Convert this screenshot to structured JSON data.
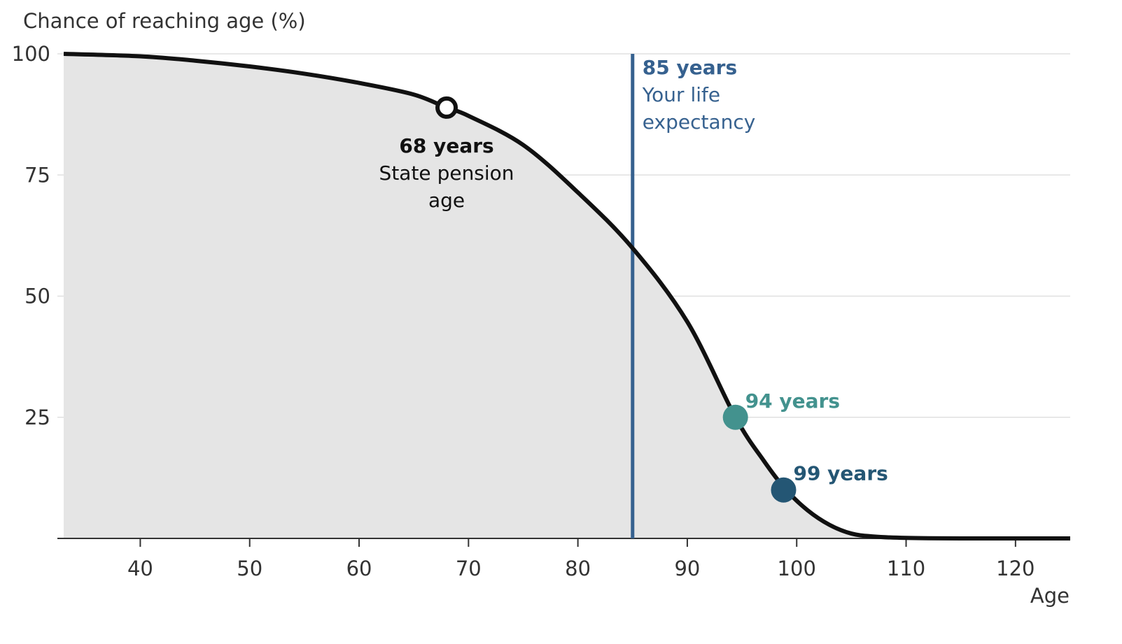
{
  "chart_data": {
    "type": "area",
    "ylabel": "Chance of reaching age (%)",
    "xlabel": "Age",
    "xlim": [
      33,
      125
    ],
    "ylim": [
      0,
      100
    ],
    "grid": true,
    "x_ticks": [
      40,
      50,
      60,
      70,
      80,
      90,
      100,
      110,
      120
    ],
    "y_ticks": [
      25,
      50,
      75,
      100
    ],
    "series": [
      {
        "name": "Chance of reaching age",
        "x": [
          33,
          40,
          45,
          50,
          55,
          60,
          65,
          68,
          70,
          75,
          80,
          85,
          90,
          94.4,
          97,
          99,
          101,
          103,
          105,
          107,
          110,
          115,
          125
        ],
        "values": [
          100,
          99.5,
          98.6,
          97.4,
          95.9,
          94,
          91.6,
          88.9,
          87.2,
          81.2,
          71.4,
          59.9,
          44.7,
          25,
          16,
          10.1,
          5.8,
          2.8,
          1.0,
          0.4,
          0.1,
          0,
          0
        ]
      }
    ],
    "annotations": {
      "pension": {
        "x": 68,
        "y": 88.9,
        "title": "68 years",
        "line1": "State pension",
        "line2": "age"
      },
      "life_expectancy": {
        "x": 85,
        "title": "85 years",
        "line1": "Your life",
        "line2": "expectancy"
      },
      "p25": {
        "x": 94.4,
        "y": 25,
        "label": "94 years"
      },
      "p10": {
        "x": 98.8,
        "y": 10,
        "label": "99 years"
      }
    },
    "colors": {
      "curve": "#111111",
      "fill": "#e5e5e5",
      "life_expectancy": "#36618f",
      "p25": "#43928e",
      "p10": "#245674",
      "grid": "#e0e0e0",
      "axis": "#333333"
    }
  }
}
